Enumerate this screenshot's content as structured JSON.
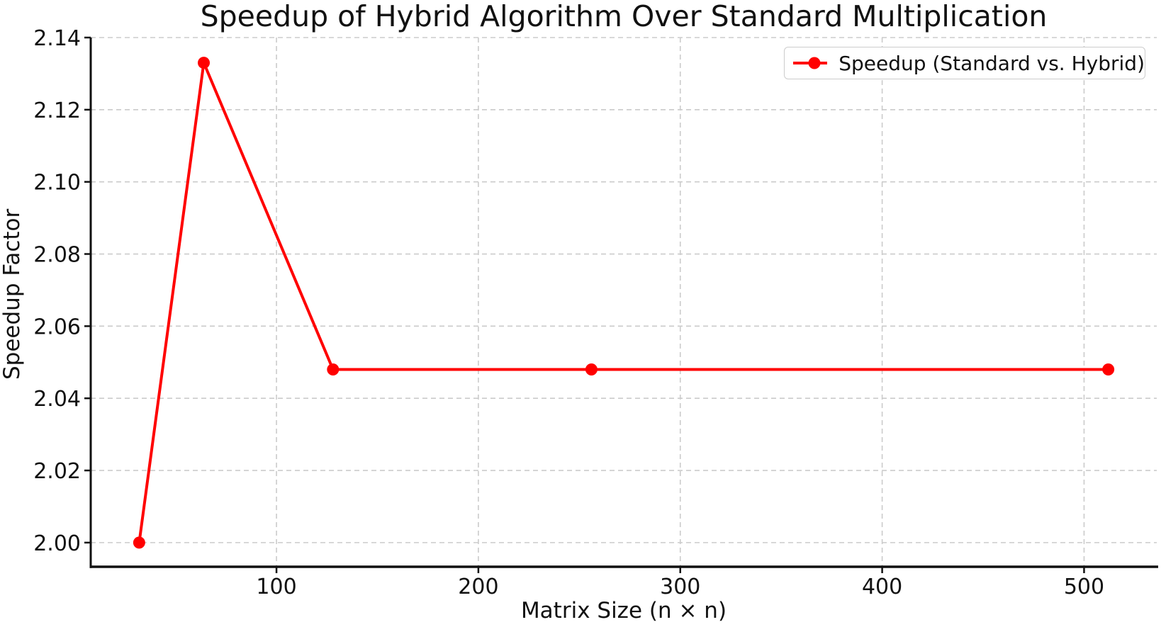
{
  "figure": {
    "background": "#ffffff"
  },
  "chart_data": {
    "type": "line",
    "title": "Speedup of Hybrid Algorithm Over Standard Multiplication",
    "xlabel": "Matrix Size (n × n)",
    "ylabel": "Speedup Factor",
    "x": [
      32,
      64,
      128,
      256,
      512
    ],
    "series": [
      {
        "name": "Speedup (Standard vs. Hybrid)",
        "values": [
          2.0,
          2.133,
          2.048,
          2.048,
          2.048
        ],
        "color": "#ff0000",
        "marker": "circle",
        "line_width": 4
      }
    ],
    "xlim": [
      8,
      536
    ],
    "ylim": [
      1.9933,
      2.14
    ],
    "xticks": [
      100,
      200,
      300,
      400,
      500
    ],
    "xtick_labels": [
      "100",
      "200",
      "300",
      "400",
      "500"
    ],
    "yticks": [
      2.0,
      2.02,
      2.04,
      2.06,
      2.08,
      2.1,
      2.12,
      2.14
    ],
    "ytick_labels": [
      "2.00",
      "2.02",
      "2.04",
      "2.06",
      "2.08",
      "2.10",
      "2.12",
      "2.14"
    ],
    "grid": {
      "visible": true,
      "style": "dashed",
      "color": "#cbcbcb"
    },
    "legend": {
      "position": "upper right"
    }
  }
}
